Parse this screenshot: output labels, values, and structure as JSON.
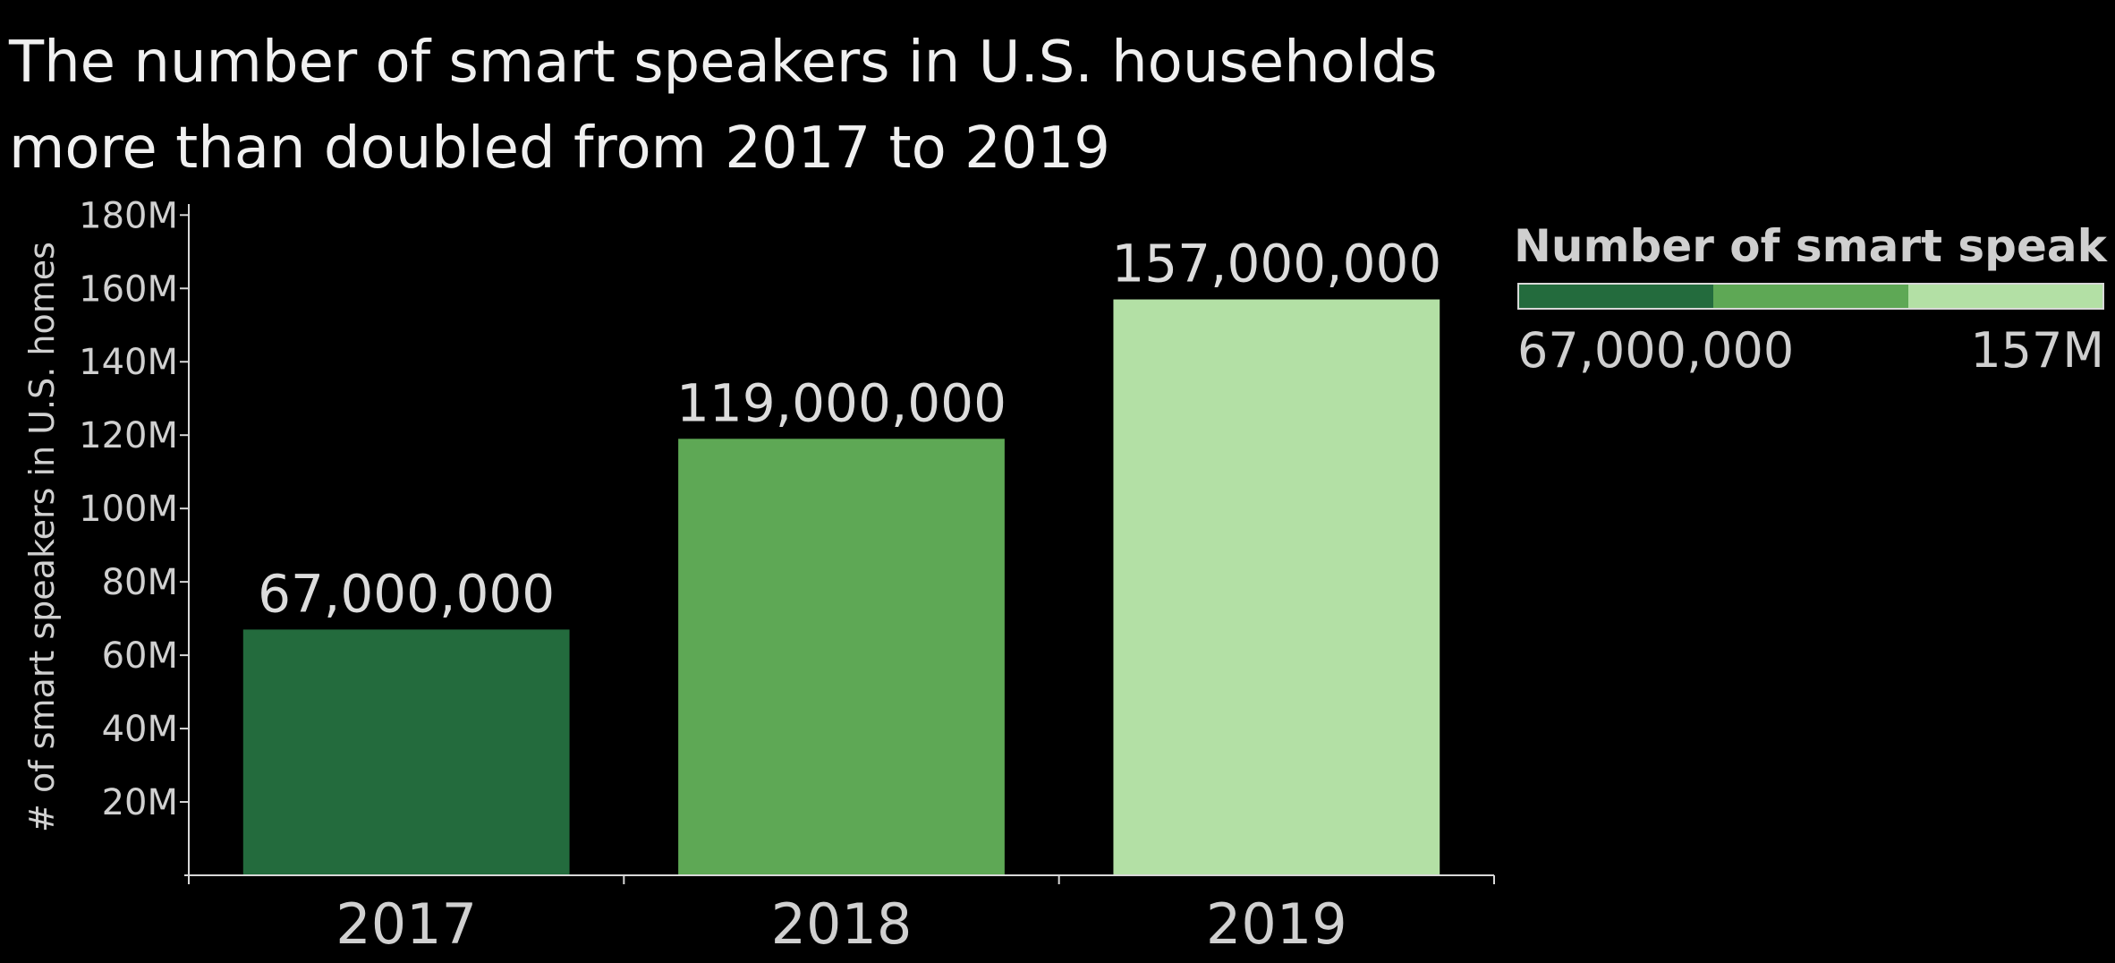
{
  "chart_data": {
    "type": "bar",
    "title": "The number of smart speakers in U.S. households more than doubled from 2017 to 2019",
    "title_lines": [
      "The number of smart speakers in U.S. households",
      "more than doubled from 2017 to 2019"
    ],
    "categories": [
      "2017",
      "2018",
      "2019"
    ],
    "values": [
      67000000,
      119000000,
      157000000
    ],
    "value_labels": [
      "67,000,000",
      "119,000,000",
      "157,000,000"
    ],
    "bar_colors": [
      "#236b3d",
      "#5ea855",
      "#b3e0a5"
    ],
    "xlabel": "",
    "ylabel": "# of smart speakers in U.S. homes",
    "ylim": [
      0,
      183000000
    ],
    "yticks": [
      20000000,
      40000000,
      60000000,
      80000000,
      100000000,
      120000000,
      140000000,
      160000000,
      180000000
    ],
    "ytick_labels": [
      "20M",
      "40M",
      "60M",
      "80M",
      "100M",
      "120M",
      "140M",
      "160M",
      "180M"
    ],
    "grid": false,
    "legend": {
      "title": "Number of smart speak..",
      "min_label": "67,000,000",
      "max_label": "157M",
      "colors": [
        "#236b3d",
        "#5ea855",
        "#b3e0a5"
      ],
      "placement": "top-right"
    }
  }
}
